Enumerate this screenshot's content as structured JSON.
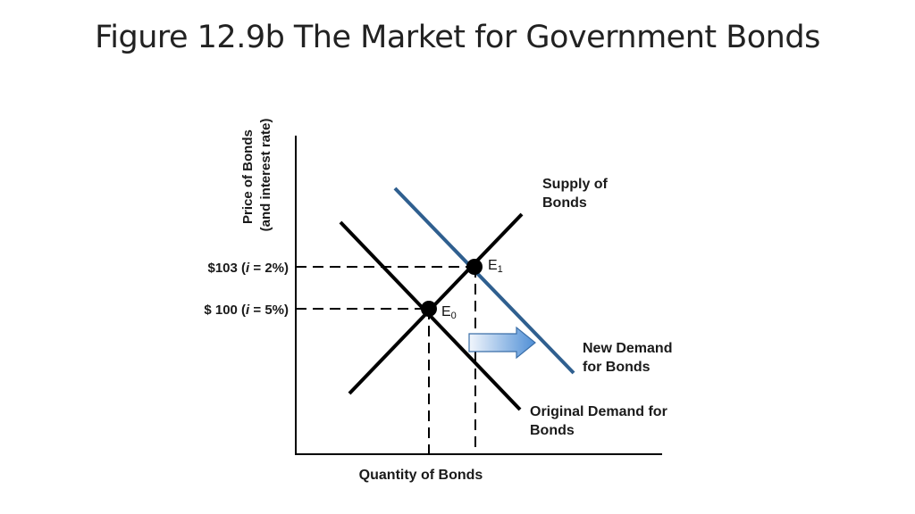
{
  "title": "Figure 12.9b The Market for Government Bonds",
  "axes": {
    "y_label_line1": "Price of Bonds",
    "y_label_line2": "(and interest rate)",
    "x_label": "Quantity of Bonds"
  },
  "price_levels": {
    "high": {
      "prefix": "$103 (",
      "italic": "i",
      "suffix": " = 2%)"
    },
    "low": {
      "prefix": "$ 100 (",
      "italic": "i",
      "suffix": " = 5%)"
    }
  },
  "curves": {
    "supply_line1": "Supply of",
    "supply_line2": "Bonds",
    "new_demand_line1": "New Demand",
    "new_demand_line2": "for Bonds",
    "original_demand_line1": "Original Demand for",
    "original_demand_line2": "Bonds"
  },
  "equilibria": {
    "e0": {
      "letter": "E",
      "sub": "0"
    },
    "e1": {
      "letter": "E",
      "sub": "1"
    }
  },
  "colors": {
    "curve": "#000000",
    "new_demand": "#2f5f8f",
    "arrow_light": "#f2f6fc",
    "arrow_dark": "#4f8fd6",
    "arrow_stroke": "#3a6ea8"
  },
  "icons": {
    "shift_arrow": "right-arrow-icon"
  }
}
